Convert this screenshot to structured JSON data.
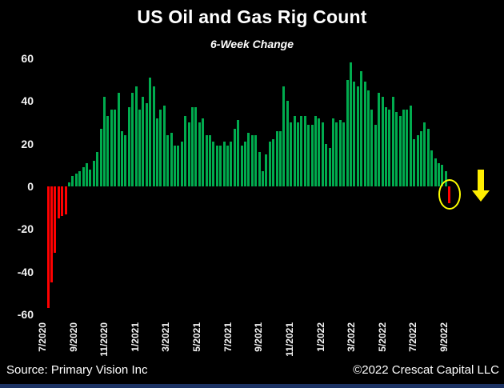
{
  "title": "US Oil and Gas Rig Count",
  "subtitle": "6-Week Change",
  "footer": {
    "source": "Source: Primary Vision Inc",
    "copyright": "©2022 Crescat Capital LLC"
  },
  "chart_data": {
    "type": "bar",
    "title": "US Oil and Gas Rig Count",
    "subtitle": "6-Week Change",
    "frequency": "weekly",
    "x_tick_labels": [
      "7/2020",
      "9/2020",
      "11/2020",
      "1/2021",
      "3/2021",
      "5/2021",
      "7/2021",
      "9/2021",
      "11/2021",
      "1/2022",
      "3/2022",
      "5/2022",
      "7/2022",
      "9/2022"
    ],
    "y_ticks": [
      60,
      40,
      20,
      0,
      -20,
      -40,
      -60
    ],
    "ylim": [
      -60,
      60
    ],
    "grid": false,
    "legend": "none",
    "background_color": "#000000",
    "positive_color": "#00ab4e",
    "negative_color": "#ff0000",
    "values": [
      -57,
      -45,
      -31,
      -15,
      -14,
      -13,
      2,
      5,
      6,
      7,
      9,
      11,
      8,
      12,
      16,
      27,
      42,
      33,
      36,
      36,
      44,
      26,
      24,
      37,
      44,
      47,
      36,
      42,
      39,
      51,
      47,
      32,
      36,
      38,
      24,
      25,
      19,
      19,
      21,
      33,
      30,
      37,
      37,
      30,
      32,
      24,
      24,
      21,
      19,
      19,
      21,
      19,
      21,
      27,
      31,
      19,
      21,
      25,
      24,
      24,
      16,
      7,
      15,
      21,
      22,
      26,
      26,
      47,
      40,
      30,
      33,
      30,
      33,
      33,
      29,
      29,
      33,
      32,
      30,
      20,
      18,
      32,
      30,
      31,
      30,
      50,
      58,
      49,
      47,
      54,
      49,
      45,
      36,
      29,
      44,
      42,
      37,
      36,
      42,
      35,
      33,
      36,
      36,
      38,
      22,
      24,
      26,
      30,
      27,
      17,
      13,
      11,
      10,
      7,
      -8
    ],
    "annotations": [
      {
        "type": "ellipse",
        "target": "last-bar",
        "color": "#ffff00"
      },
      {
        "type": "arrow-down",
        "position": "right-of-last-bar",
        "color": "#ffee00"
      }
    ]
  }
}
